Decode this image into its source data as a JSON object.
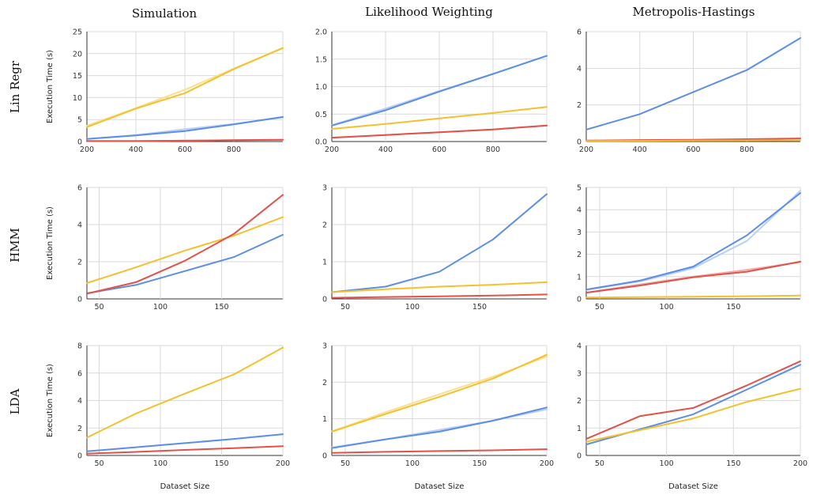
{
  "figure": {
    "column_titles": [
      "Simulation",
      "Likelihood Weighting",
      "Metropolis-Hastings"
    ],
    "row_titles": [
      "Lin Regr",
      "HMM",
      "LDA"
    ],
    "ylabel": "Execution Time (s)",
    "xlabel": "Dataset Size"
  },
  "colors": {
    "blue": "#5b8ee6",
    "blue_light": "#b9cff5",
    "red": "#e0524a",
    "red_light": "#f2aaa6",
    "yellow": "#f5c02d",
    "yellow_light": "#fae08e"
  },
  "chart_data": [
    {
      "type": "line",
      "row": 0,
      "col": 0,
      "xlim": [
        200,
        1000
      ],
      "ylim": [
        0,
        25
      ],
      "xticks": [
        200,
        400,
        600,
        800
      ],
      "yticks": [
        0,
        5,
        10,
        15,
        20,
        25
      ],
      "x": [
        200,
        400,
        600,
        800,
        1000
      ],
      "series": [
        {
          "color": "yellow_light",
          "values": [
            3.6,
            7.6,
            11.8,
            16.6,
            21.2
          ]
        },
        {
          "color": "yellow",
          "values": [
            3.3,
            7.5,
            11.0,
            16.5,
            21.3
          ]
        },
        {
          "color": "blue_light",
          "values": [
            0.6,
            1.5,
            2.8,
            4.0,
            5.5
          ]
        },
        {
          "color": "blue",
          "values": [
            0.6,
            1.4,
            2.4,
            3.9,
            5.6
          ]
        },
        {
          "color": "red_light",
          "values": [
            0.1,
            0.1,
            0.2,
            0.3,
            0.4
          ]
        },
        {
          "color": "red",
          "values": [
            0.1,
            0.1,
            0.2,
            0.3,
            0.4
          ]
        }
      ]
    },
    {
      "type": "line",
      "row": 0,
      "col": 1,
      "xlim": [
        200,
        1000
      ],
      "ylim": [
        0,
        2.0
      ],
      "xticks": [
        200,
        400,
        600,
        800
      ],
      "yticks": [
        0,
        0.5,
        1.0,
        1.5,
        2.0
      ],
      "ytick_labels": [
        "0.0",
        "0.5",
        "1.0",
        "1.5",
        "2.0"
      ],
      "x": [
        200,
        400,
        600,
        800,
        1000
      ],
      "series": [
        {
          "color": "blue_light",
          "values": [
            0.3,
            0.6,
            0.92,
            1.23,
            1.56
          ]
        },
        {
          "color": "blue",
          "values": [
            0.29,
            0.57,
            0.91,
            1.23,
            1.56
          ]
        },
        {
          "color": "yellow",
          "values": [
            0.23,
            0.32,
            0.42,
            0.52,
            0.63
          ]
        },
        {
          "color": "red_light",
          "values": [
            0.07,
            0.12,
            0.17,
            0.22,
            0.29
          ]
        },
        {
          "color": "red",
          "values": [
            0.07,
            0.12,
            0.17,
            0.22,
            0.29
          ]
        }
      ]
    },
    {
      "type": "line",
      "row": 0,
      "col": 2,
      "xlim": [
        200,
        1000
      ],
      "ylim": [
        0,
        6
      ],
      "xticks": [
        200,
        400,
        600,
        800
      ],
      "yticks": [
        0,
        2,
        4,
        6
      ],
      "x": [
        200,
        400,
        600,
        800,
        1000
      ],
      "series": [
        {
          "color": "blue",
          "values": [
            0.65,
            1.5,
            2.7,
            3.9,
            5.65
          ]
        },
        {
          "color": "red",
          "values": [
            0.05,
            0.08,
            0.1,
            0.13,
            0.17
          ]
        },
        {
          "color": "yellow",
          "values": [
            0.03,
            0.04,
            0.05,
            0.06,
            0.07
          ]
        }
      ]
    },
    {
      "type": "line",
      "row": 1,
      "col": 0,
      "xlim": [
        40,
        200
      ],
      "ylim": [
        0,
        6
      ],
      "xticks": [
        50,
        100,
        150
      ],
      "yticks": [
        0,
        2,
        4,
        6
      ],
      "x": [
        40,
        80,
        120,
        160,
        200
      ],
      "series": [
        {
          "color": "yellow",
          "values": [
            0.85,
            1.7,
            2.6,
            3.4,
            4.4
          ]
        },
        {
          "color": "blue",
          "values": [
            0.3,
            0.75,
            1.5,
            2.25,
            3.45
          ]
        },
        {
          "color": "red",
          "values": [
            0.28,
            0.9,
            2.05,
            3.5,
            5.6
          ]
        }
      ]
    },
    {
      "type": "line",
      "row": 1,
      "col": 1,
      "xlim": [
        40,
        200
      ],
      "ylim": [
        0,
        3
      ],
      "xticks": [
        50,
        100,
        150
      ],
      "yticks": [
        0,
        1,
        2,
        3
      ],
      "x": [
        40,
        80,
        120,
        160,
        200
      ],
      "series": [
        {
          "color": "blue",
          "values": [
            0.18,
            0.33,
            0.73,
            1.6,
            2.82
          ]
        },
        {
          "color": "yellow",
          "values": [
            0.18,
            0.26,
            0.33,
            0.38,
            0.45
          ]
        },
        {
          "color": "red",
          "values": [
            0.03,
            0.05,
            0.07,
            0.09,
            0.12
          ]
        }
      ]
    },
    {
      "type": "line",
      "row": 1,
      "col": 2,
      "xlim": [
        40,
        200
      ],
      "ylim": [
        0,
        5
      ],
      "xticks": [
        50,
        100,
        150
      ],
      "yticks": [
        0,
        1,
        2,
        3,
        4,
        5
      ],
      "x": [
        40,
        80,
        120,
        160,
        200
      ],
      "series": [
        {
          "color": "blue_light",
          "values": [
            0.4,
            0.78,
            1.38,
            2.6,
            4.85
          ]
        },
        {
          "color": "blue",
          "values": [
            0.42,
            0.82,
            1.45,
            2.85,
            4.75
          ]
        },
        {
          "color": "red_light",
          "values": [
            0.28,
            0.65,
            1.0,
            1.3,
            1.65
          ]
        },
        {
          "color": "red",
          "values": [
            0.28,
            0.6,
            0.97,
            1.22,
            1.67
          ]
        },
        {
          "color": "yellow",
          "values": [
            0.06,
            0.08,
            0.1,
            0.12,
            0.15
          ]
        }
      ]
    },
    {
      "type": "line",
      "row": 2,
      "col": 0,
      "xlim": [
        40,
        200
      ],
      "ylim": [
        0,
        8
      ],
      "xticks": [
        50,
        100,
        150,
        200
      ],
      "yticks": [
        0,
        2,
        4,
        6,
        8
      ],
      "x": [
        40,
        80,
        120,
        160,
        200
      ],
      "series": [
        {
          "color": "yellow",
          "values": [
            1.3,
            3.05,
            4.5,
            5.9,
            7.85
          ]
        },
        {
          "color": "blue",
          "values": [
            0.3,
            0.6,
            0.9,
            1.2,
            1.55
          ]
        },
        {
          "color": "red",
          "values": [
            0.13,
            0.26,
            0.4,
            0.53,
            0.68
          ]
        }
      ]
    },
    {
      "type": "line",
      "row": 2,
      "col": 1,
      "xlim": [
        40,
        200
      ],
      "ylim": [
        0,
        3
      ],
      "xticks": [
        50,
        100,
        150,
        200
      ],
      "yticks": [
        0,
        1,
        2,
        3
      ],
      "x": [
        40,
        80,
        120,
        160,
        200
      ],
      "series": [
        {
          "color": "yellow_light",
          "values": [
            0.66,
            1.18,
            1.67,
            2.15,
            2.7
          ]
        },
        {
          "color": "yellow",
          "values": [
            0.65,
            1.13,
            1.6,
            2.1,
            2.75
          ]
        },
        {
          "color": "blue_light",
          "values": [
            0.22,
            0.44,
            0.7,
            0.95,
            1.26
          ]
        },
        {
          "color": "blue",
          "values": [
            0.2,
            0.44,
            0.65,
            0.95,
            1.31
          ]
        },
        {
          "color": "red",
          "values": [
            0.07,
            0.1,
            0.12,
            0.14,
            0.17
          ]
        }
      ]
    },
    {
      "type": "line",
      "row": 2,
      "col": 2,
      "xlim": [
        40,
        200
      ],
      "ylim": [
        0,
        4
      ],
      "xticks": [
        50,
        100,
        150,
        200
      ],
      "yticks": [
        0,
        1,
        2,
        3,
        4
      ],
      "x": [
        40,
        80,
        120,
        160,
        200
      ],
      "series": [
        {
          "color": "red",
          "values": [
            0.6,
            1.43,
            1.73,
            2.55,
            3.43
          ]
        },
        {
          "color": "blue",
          "values": [
            0.4,
            0.95,
            1.5,
            2.4,
            3.3
          ]
        },
        {
          "color": "yellow",
          "values": [
            0.5,
            0.92,
            1.35,
            1.95,
            2.43
          ]
        }
      ]
    }
  ]
}
